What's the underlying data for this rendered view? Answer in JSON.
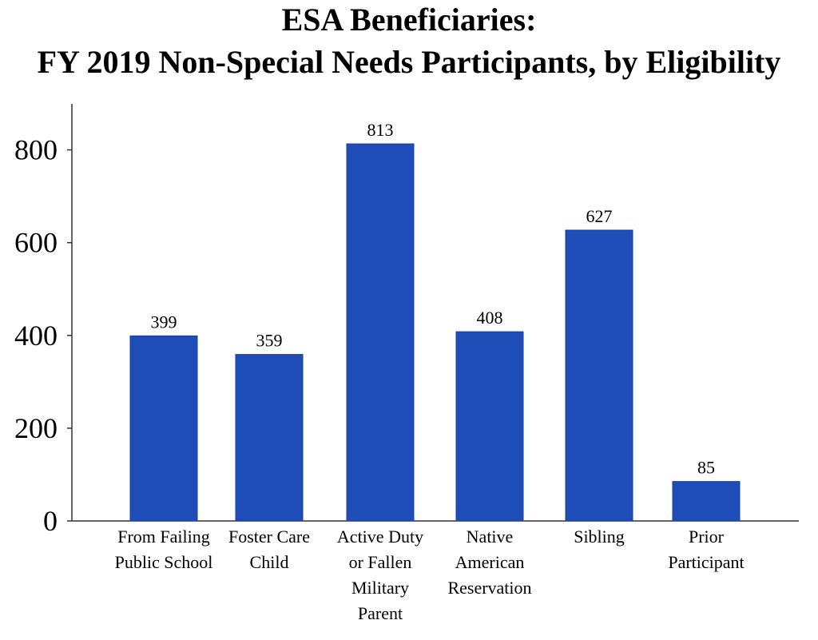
{
  "chart_data": {
    "type": "bar",
    "title": [
      "ESA Beneficiaries:",
      "FY 2019 Non-Special Needs Participants, by Eligibility"
    ],
    "xlabel": "",
    "ylabel": "",
    "ylim": [
      0,
      900
    ],
    "yticks": [
      0,
      200,
      400,
      600,
      800
    ],
    "categories": [
      [
        "From Failing",
        "Public School"
      ],
      [
        "Foster Care",
        "Child"
      ],
      [
        "Active Duty",
        "or Fallen",
        "Military",
        "Parent"
      ],
      [
        "Native",
        "American",
        "Reservation"
      ],
      [
        "Sibling"
      ],
      [
        "Prior",
        "Participant"
      ]
    ],
    "values": [
      399,
      359,
      813,
      408,
      627,
      85
    ],
    "data_labels": [
      "399",
      "359",
      "813",
      "408",
      "627",
      "85"
    ],
    "bar_color": "#1f4db8",
    "grid": false,
    "legend": "none"
  }
}
